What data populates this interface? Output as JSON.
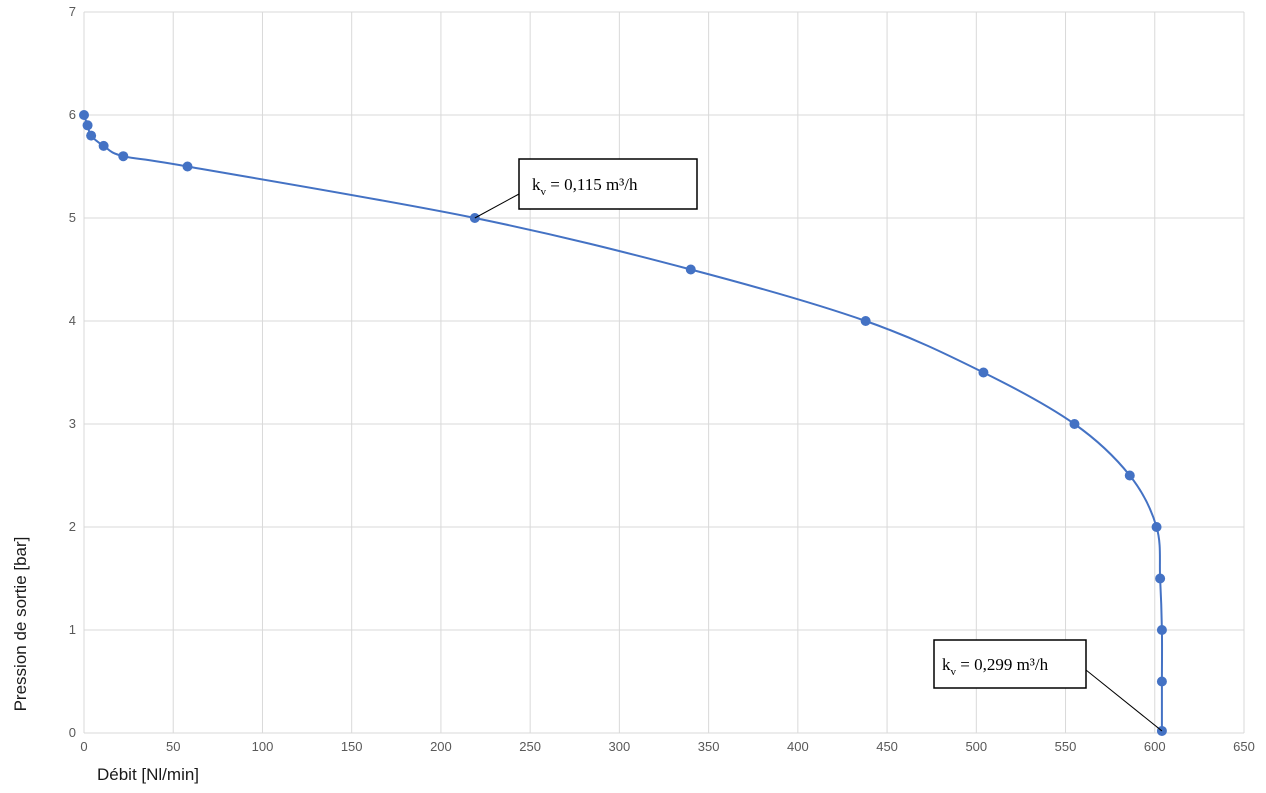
{
  "chart_data": {
    "type": "scatter",
    "title": "",
    "xlabel": "Débit [Nl/min]",
    "ylabel": "Pression de sortie [bar]",
    "xlim": [
      0,
      650
    ],
    "ylim": [
      0,
      7
    ],
    "x_ticks": [
      0,
      50,
      100,
      150,
      200,
      250,
      300,
      350,
      400,
      450,
      500,
      550,
      600,
      650
    ],
    "y_ticks": [
      0,
      1,
      2,
      3,
      4,
      5,
      6,
      7
    ],
    "grid": true,
    "smooth_line": true,
    "colors": {
      "series": "#4472c4",
      "grid": "#d9d9d9"
    },
    "series": [
      {
        "points": [
          [
            0,
            6
          ],
          [
            2,
            5.9
          ],
          [
            4,
            5.8
          ],
          [
            11,
            5.7
          ],
          [
            22,
            5.6
          ],
          [
            58,
            5.5
          ],
          [
            219,
            5.0
          ],
          [
            340,
            4.5
          ],
          [
            438,
            4.0
          ],
          [
            504,
            3.5
          ],
          [
            555,
            3.0
          ],
          [
            586,
            2.5
          ],
          [
            601,
            2.0
          ],
          [
            603,
            1.5
          ],
          [
            604,
            1.0
          ],
          [
            604,
            0.5
          ],
          [
            604,
            0.02
          ]
        ]
      }
    ],
    "annotations": [
      {
        "k": "k",
        "sub": "v",
        "text": " = 0,115 m³/h",
        "point": [
          219,
          5.0
        ]
      },
      {
        "k": "k",
        "sub": "v",
        "text": " = 0,299 m³/h",
        "point": [
          604,
          0.02
        ]
      }
    ]
  }
}
